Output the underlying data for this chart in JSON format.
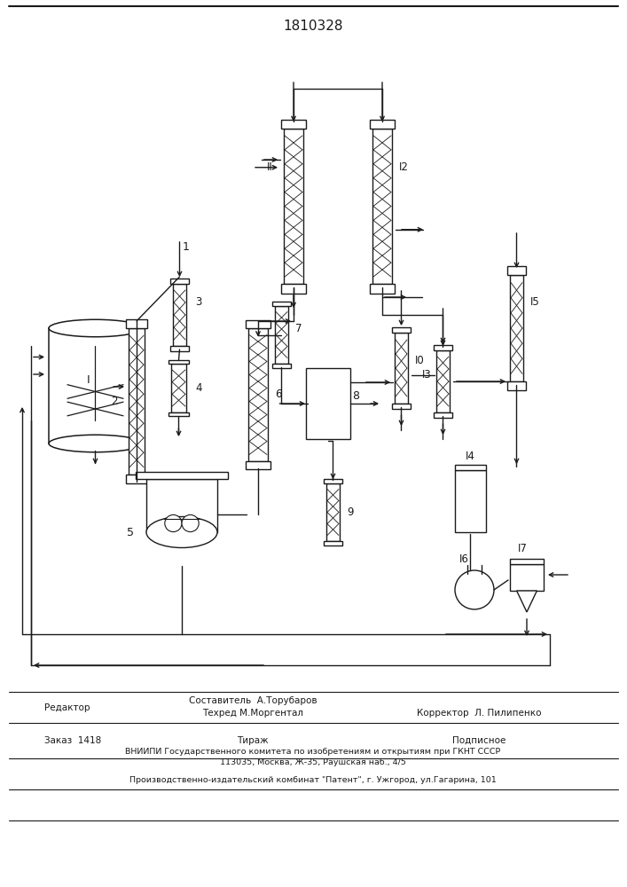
{
  "patent_number": "1810328",
  "bg": "#ffffff",
  "lc": "#1a1a1a",
  "footer": {
    "editor_label": "Редактор",
    "composer": "Составитель  А.Торубаров",
    "techred": "Техред М.Моргентал",
    "corrector": "Корректор  Л. Пилипенко",
    "order": "Заказ  1418",
    "tirazh": "Тираж",
    "podpisnoe": "Подписное",
    "vniipis": "ВНИИПИ Государственного комитета по изобретениям и открытиям при ГКНТ СССР",
    "address": "113035, Москва, Ж-35, Раушская наб., 4/5",
    "publisher": "Производственно-издательский комбинат \"Патент\", г. Ужгород, ул.Гагарина, 101"
  }
}
